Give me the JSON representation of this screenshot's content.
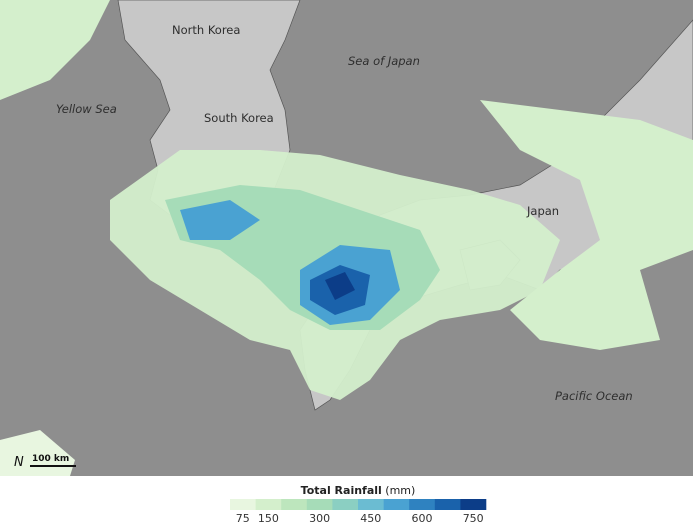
{
  "labels": {
    "north_korea": "North Korea",
    "south_korea": "South Korea",
    "sea_of_japan": "Sea of Japan",
    "yellow_sea": "Yellow Sea",
    "japan": "Japan",
    "pacific_ocean": "Pacific Ocean"
  },
  "scale_bar": "100 km",
  "legend": {
    "title": "Total Rainfall",
    "unit": "(mm)",
    "ticks": [
      75,
      150,
      300,
      450,
      600,
      750
    ],
    "colors": [
      "#e8f6e0",
      "#d4efcc",
      "#bde6bd",
      "#a6dcb8",
      "#8bcfc2",
      "#6bbcd2",
      "#4aa2d2",
      "#2f82c0",
      "#1a62ab",
      "#0c3d88"
    ]
  }
}
